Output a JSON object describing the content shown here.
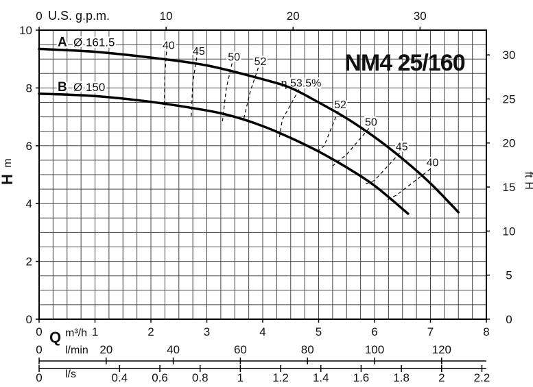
{
  "chart_data": {
    "type": "line",
    "title": "NM4 25/160",
    "grid": true,
    "axes": {
      "left": {
        "label": "H",
        "unit": "m",
        "ticks": [
          0,
          2,
          4,
          6,
          8,
          10
        ],
        "range": [
          0,
          10
        ]
      },
      "right": {
        "label": "H",
        "unit": "ft",
        "ticks": [
          0,
          5,
          10,
          15,
          20,
          25,
          30
        ]
      },
      "bottom_m3h": {
        "label": "Q",
        "unit": "m³/h",
        "ticks": [
          0,
          1,
          2,
          3,
          4,
          5,
          6,
          7,
          8
        ],
        "range": [
          0,
          8
        ]
      },
      "top_gpm": {
        "label": "U.S. g.p.m.",
        "ticks": [
          0,
          10,
          20,
          30
        ]
      },
      "bottom_lmin": {
        "label": "l/min",
        "ticks": [
          0,
          20,
          40,
          60,
          80,
          100,
          120
        ]
      },
      "bottom_ls": {
        "label": "l/s",
        "ticks": [
          0,
          0.4,
          0.6,
          0.8,
          1,
          1.2,
          1.4,
          1.6,
          1.8,
          2,
          2.2
        ]
      }
    },
    "series": [
      {
        "name": "A",
        "impeller": "Ø 161.5",
        "points": [
          [
            0,
            9.35
          ],
          [
            1,
            9.25
          ],
          [
            2,
            9.05
          ],
          [
            3,
            8.78
          ],
          [
            4,
            8.3
          ],
          [
            4.5,
            8.0
          ],
          [
            5,
            7.5
          ],
          [
            5.5,
            6.95
          ],
          [
            6,
            6.3
          ],
          [
            6.5,
            5.55
          ],
          [
            7,
            4.7
          ],
          [
            7.5,
            3.7
          ]
        ]
      },
      {
        "name": "B",
        "impeller": "Ø 150",
        "points": [
          [
            0,
            7.8
          ],
          [
            1,
            7.72
          ],
          [
            2,
            7.52
          ],
          [
            3,
            7.22
          ],
          [
            3.5,
            7.0
          ],
          [
            4,
            6.68
          ],
          [
            4.5,
            6.27
          ],
          [
            5,
            5.8
          ],
          [
            5.5,
            5.25
          ],
          [
            6,
            4.62
          ],
          [
            6.6,
            3.65
          ]
        ]
      }
    ],
    "efficiency": {
      "label_prefix": "η",
      "contours": [
        {
          "label": "40",
          "points": [
            [
              2.28,
              9.25
            ],
            [
              2.25,
              8.5
            ],
            [
              2.24,
              7.3
            ]
          ]
        },
        {
          "label": "45",
          "points": [
            [
              2.82,
              9.05
            ],
            [
              2.75,
              8.2
            ],
            [
              2.72,
              7.0
            ]
          ]
        },
        {
          "label": "50",
          "points": [
            [
              3.45,
              8.85
            ],
            [
              3.35,
              8.0
            ],
            [
              3.28,
              6.85
            ]
          ]
        },
        {
          "label": "52",
          "points": [
            [
              3.92,
              8.7
            ],
            [
              3.78,
              7.9
            ],
            [
              3.65,
              6.85
            ]
          ]
        },
        {
          "label": "53.5%",
          "points": [
            [
              4.65,
              7.95
            ],
            [
              4.35,
              6.9
            ],
            [
              4.3,
              6.3
            ]
          ]
        },
        {
          "label": "52",
          "points": [
            [
              5.35,
              7.2
            ],
            [
              5.1,
              6.0
            ],
            [
              4.95,
              5.75
            ]
          ]
        },
        {
          "label": "50",
          "points": [
            [
              5.9,
              6.6
            ],
            [
              5.5,
              5.7
            ],
            [
              5.25,
              5.3
            ]
          ]
        },
        {
          "label": "45",
          "points": [
            [
              6.45,
              5.75
            ],
            [
              6.0,
              4.8
            ],
            [
              5.8,
              4.65
            ]
          ]
        },
        {
          "label": "40",
          "points": [
            [
              7.0,
              5.2
            ],
            [
              6.4,
              4.3
            ],
            [
              6.2,
              4.1
            ]
          ]
        }
      ]
    }
  }
}
